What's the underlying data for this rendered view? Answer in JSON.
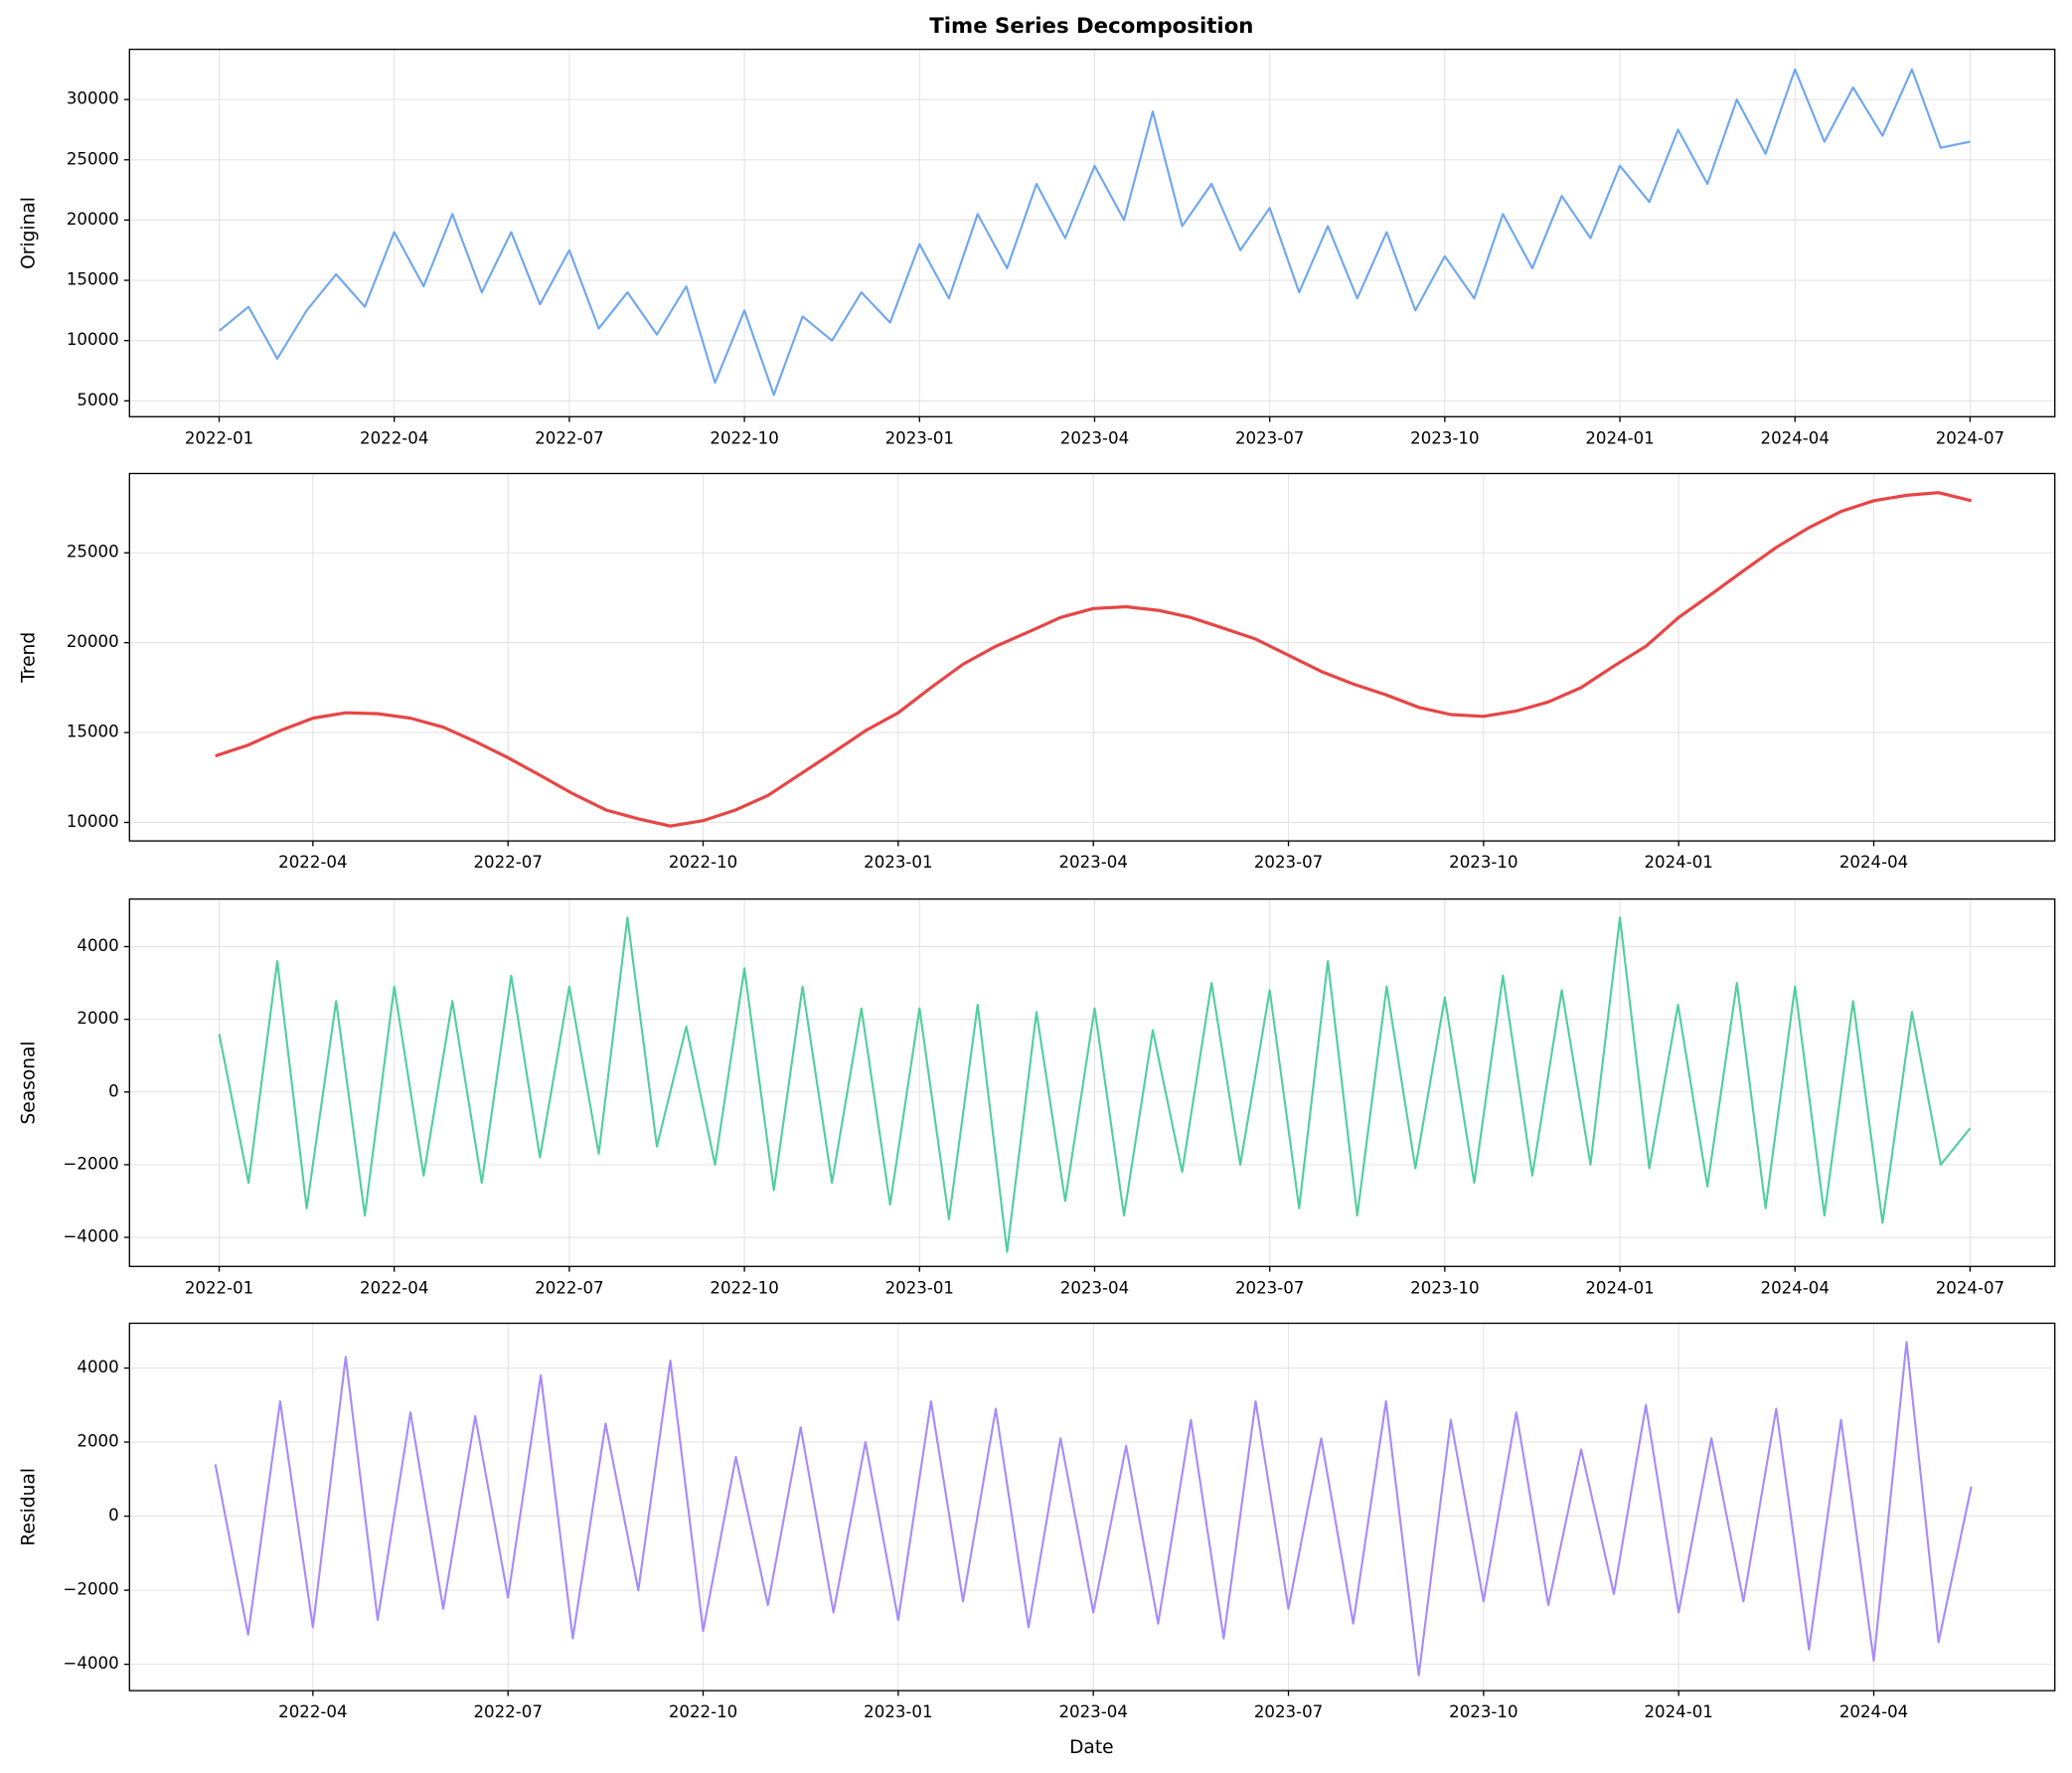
{
  "chart_data": [
    {
      "type": "line",
      "title": "Time Series Decomposition",
      "ylabel": "Original",
      "color": "#6ea6f2",
      "grid": true,
      "xlim": [
        2021.872,
        2024.621
      ],
      "ylim": [
        3684,
        34167
      ],
      "xticks": [
        {
          "value": 2022.0,
          "label": "2022-01"
        },
        {
          "value": 2022.25,
          "label": "2022-04"
        },
        {
          "value": 2022.5,
          "label": "2022-07"
        },
        {
          "value": 2022.75,
          "label": "2022-10"
        },
        {
          "value": 2023.0,
          "label": "2023-01"
        },
        {
          "value": 2023.25,
          "label": "2023-04"
        },
        {
          "value": 2023.5,
          "label": "2023-07"
        },
        {
          "value": 2023.75,
          "label": "2023-10"
        },
        {
          "value": 2024.0,
          "label": "2024-01"
        },
        {
          "value": 2024.25,
          "label": "2024-04"
        },
        {
          "value": 2024.5,
          "label": "2024-07"
        }
      ],
      "yticks": [
        5000,
        10000,
        15000,
        20000,
        25000,
        30000
      ],
      "x": [
        2022.0,
        2022.042,
        2022.083,
        2022.125,
        2022.167,
        2022.208,
        2022.25,
        2022.292,
        2022.333,
        2022.375,
        2022.417,
        2022.458,
        2022.5,
        2022.542,
        2022.583,
        2022.625,
        2022.667,
        2022.708,
        2022.75,
        2022.792,
        2022.833,
        2022.875,
        2022.917,
        2022.958,
        2023.0,
        2023.042,
        2023.083,
        2023.125,
        2023.167,
        2023.208,
        2023.25,
        2023.292,
        2023.333,
        2023.375,
        2023.417,
        2023.458,
        2023.5,
        2023.542,
        2023.583,
        2023.625,
        2023.667,
        2023.708,
        2023.75,
        2023.792,
        2023.833,
        2023.875,
        2023.917,
        2023.958,
        2024.0,
        2024.042,
        2024.083,
        2024.125,
        2024.167,
        2024.208,
        2024.25,
        2024.292,
        2024.333,
        2024.375,
        2024.417,
        2024.458,
        2024.5
      ],
      "values": [
        10800,
        12800,
        8500,
        12500,
        15500,
        12800,
        19000,
        14500,
        20500,
        14000,
        19000,
        13000,
        17500,
        11000,
        14000,
        10500,
        14500,
        6500,
        12500,
        5500,
        12000,
        10000,
        14000,
        11500,
        18000,
        13500,
        20500,
        16000,
        23000,
        18500,
        24500,
        20000,
        29000,
        19500,
        23000,
        17500,
        21000,
        14000,
        19500,
        13500,
        19000,
        12500,
        17000,
        13500,
        20500,
        16000,
        22000,
        18500,
        24500,
        21500,
        27500,
        23000,
        30000,
        25500,
        32500,
        26500,
        31000,
        27000,
        32500,
        26000,
        26500
      ]
    },
    {
      "type": "line",
      "ylabel": "Trend",
      "color": "#e84545",
      "grid": true,
      "xlim": [
        2022.015,
        2024.482
      ],
      "ylim": [
        8971,
        29412
      ],
      "xticks": [
        {
          "value": 2022.25,
          "label": "2022-04"
        },
        {
          "value": 2022.5,
          "label": "2022-07"
        },
        {
          "value": 2022.75,
          "label": "2022-10"
        },
        {
          "value": 2023.0,
          "label": "2023-01"
        },
        {
          "value": 2023.25,
          "label": "2023-04"
        },
        {
          "value": 2023.5,
          "label": "2023-07"
        },
        {
          "value": 2023.75,
          "label": "2023-10"
        },
        {
          "value": 2024.0,
          "label": "2024-01"
        },
        {
          "value": 2024.25,
          "label": "2024-04"
        }
      ],
      "yticks": [
        10000,
        15000,
        20000,
        25000
      ],
      "x": [
        2022.125,
        2022.167,
        2022.208,
        2022.25,
        2022.292,
        2022.333,
        2022.375,
        2022.417,
        2022.458,
        2022.5,
        2022.542,
        2022.583,
        2022.625,
        2022.667,
        2022.708,
        2022.75,
        2022.792,
        2022.833,
        2022.875,
        2022.917,
        2022.958,
        2023.0,
        2023.042,
        2023.083,
        2023.125,
        2023.167,
        2023.208,
        2023.25,
        2023.292,
        2023.333,
        2023.375,
        2023.417,
        2023.458,
        2023.5,
        2023.542,
        2023.583,
        2023.625,
        2023.667,
        2023.708,
        2023.75,
        2023.792,
        2023.833,
        2023.875,
        2023.917,
        2023.958,
        2024.0,
        2024.042,
        2024.083,
        2024.125,
        2024.167,
        2024.208,
        2024.25,
        2024.292,
        2024.333,
        2024.375
      ],
      "values": [
        13700,
        14300,
        15100,
        15800,
        16100,
        16050,
        15800,
        15300,
        14500,
        13600,
        12600,
        11600,
        10700,
        10200,
        9800,
        10100,
        10700,
        11500,
        12700,
        13900,
        15100,
        16100,
        17500,
        18800,
        19800,
        20600,
        21400,
        21900,
        22000,
        21800,
        21400,
        20800,
        20200,
        19300,
        18400,
        17700,
        17100,
        16400,
        16000,
        15900,
        16200,
        16700,
        17500,
        18700,
        19800,
        21400,
        22700,
        24000,
        25300,
        26400,
        27300,
        27900,
        28200,
        28350,
        27900
      ]
    },
    {
      "type": "line",
      "ylabel": "Seasonal",
      "color": "#52cea0",
      "grid": true,
      "xlim": [
        2021.872,
        2024.621
      ],
      "ylim": [
        -4800,
        5309
      ],
      "xticks": [
        {
          "value": 2022.0,
          "label": "2022-01"
        },
        {
          "value": 2022.25,
          "label": "2022-04"
        },
        {
          "value": 2022.5,
          "label": "2022-07"
        },
        {
          "value": 2022.75,
          "label": "2022-10"
        },
        {
          "value": 2023.0,
          "label": "2023-01"
        },
        {
          "value": 2023.25,
          "label": "2023-04"
        },
        {
          "value": 2023.5,
          "label": "2023-07"
        },
        {
          "value": 2023.75,
          "label": "2023-10"
        },
        {
          "value": 2024.0,
          "label": "2024-01"
        },
        {
          "value": 2024.25,
          "label": "2024-04"
        },
        {
          "value": 2024.5,
          "label": "2024-07"
        }
      ],
      "yticks": [
        {
          "value": -4000,
          "label": "−4000"
        },
        {
          "value": -2000,
          "label": "−2000"
        },
        0,
        2000,
        4000
      ],
      "x": [
        2022.0,
        2022.042,
        2022.083,
        2022.125,
        2022.167,
        2022.208,
        2022.25,
        2022.292,
        2022.333,
        2022.375,
        2022.417,
        2022.458,
        2022.5,
        2022.542,
        2022.583,
        2022.625,
        2022.667,
        2022.708,
        2022.75,
        2022.792,
        2022.833,
        2022.875,
        2022.917,
        2022.958,
        2023.0,
        2023.042,
        2023.083,
        2023.125,
        2023.167,
        2023.208,
        2023.25,
        2023.292,
        2023.333,
        2023.375,
        2023.417,
        2023.458,
        2023.5,
        2023.542,
        2023.583,
        2023.625,
        2023.667,
        2023.708,
        2023.75,
        2023.792,
        2023.833,
        2023.875,
        2023.917,
        2023.958,
        2024.0,
        2024.042,
        2024.083,
        2024.125,
        2024.167,
        2024.208,
        2024.25,
        2024.292,
        2024.333,
        2024.375,
        2024.417,
        2024.458,
        2024.5
      ],
      "values": [
        1600,
        -2500,
        3600,
        -3200,
        2500,
        -3400,
        2900,
        -2300,
        2500,
        -2500,
        3200,
        -1800,
        2900,
        -1700,
        4800,
        -1500,
        1800,
        -2000,
        3400,
        -2700,
        2900,
        -2500,
        2300,
        -3100,
        2300,
        -3500,
        2400,
        -4400,
        2200,
        -3000,
        2300,
        -3400,
        1700,
        -2200,
        3000,
        -2000,
        2800,
        -3200,
        3600,
        -3400,
        2900,
        -2100,
        2600,
        -2500,
        3200,
        -2300,
        2800,
        -2000,
        4800,
        -2100,
        2400,
        -2600,
        3000,
        -3200,
        2900,
        -3400,
        2500,
        -3600,
        2200,
        -2000,
        -1000
      ]
    },
    {
      "type": "line",
      "ylabel": "Residual",
      "xlabel": "Date",
      "color": "#a78bfa",
      "grid": true,
      "xlim": [
        2022.015,
        2024.482
      ],
      "ylim": [
        -4711,
        5209
      ],
      "xticks": [
        {
          "value": 2022.25,
          "label": "2022-04"
        },
        {
          "value": 2022.5,
          "label": "2022-07"
        },
        {
          "value": 2022.75,
          "label": "2022-10"
        },
        {
          "value": 2023.0,
          "label": "2023-01"
        },
        {
          "value": 2023.25,
          "label": "2023-04"
        },
        {
          "value": 2023.5,
          "label": "2023-07"
        },
        {
          "value": 2023.75,
          "label": "2023-10"
        },
        {
          "value": 2024.0,
          "label": "2024-01"
        },
        {
          "value": 2024.25,
          "label": "2024-04"
        }
      ],
      "yticks": [
        {
          "value": -4000,
          "label": "−4000"
        },
        {
          "value": -2000,
          "label": "−2000"
        },
        0,
        2000,
        4000
      ],
      "x": [
        2022.125,
        2022.167,
        2022.208,
        2022.25,
        2022.292,
        2022.333,
        2022.375,
        2022.417,
        2022.458,
        2022.5,
        2022.542,
        2022.583,
        2022.625,
        2022.667,
        2022.708,
        2022.75,
        2022.792,
        2022.833,
        2022.875,
        2022.917,
        2022.958,
        2023.0,
        2023.042,
        2023.083,
        2023.125,
        2023.167,
        2023.208,
        2023.25,
        2023.292,
        2023.333,
        2023.375,
        2023.417,
        2023.458,
        2023.5,
        2023.542,
        2023.583,
        2023.625,
        2023.667,
        2023.708,
        2023.75,
        2023.792,
        2023.833,
        2023.875,
        2023.917,
        2023.958,
        2024.0,
        2024.042,
        2024.083,
        2024.125,
        2024.167,
        2024.208,
        2024.25,
        2024.292,
        2024.333,
        2024.375
      ],
      "values": [
        1400,
        -3200,
        3100,
        -3000,
        4300,
        -2800,
        2800,
        -2500,
        2700,
        -2200,
        3800,
        -3300,
        2500,
        -2000,
        4200,
        -3100,
        1600,
        -2400,
        2400,
        -2600,
        2000,
        -2800,
        3100,
        -2300,
        2900,
        -3000,
        2100,
        -2600,
        1900,
        -2900,
        2600,
        -3300,
        3100,
        -2500,
        2100,
        -2900,
        3100,
        -4300,
        2600,
        -2300,
        2800,
        -2400,
        1800,
        -2100,
        3000,
        -2600,
        2100,
        -2300,
        2900,
        -3600,
        2600,
        -3900,
        4700,
        -3400,
        800
      ]
    }
  ]
}
